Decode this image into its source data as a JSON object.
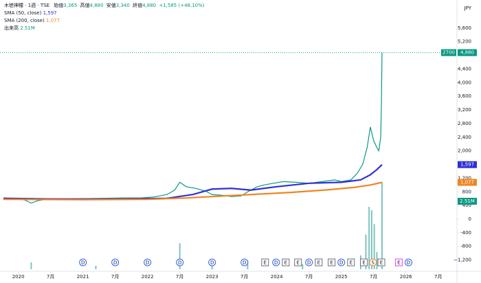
{
  "chart_data": {
    "type": "line",
    "symbol": "木徳神糧",
    "interval": "1週",
    "exchange": "TSE",
    "ohlc": [
      {
        "label": "始値",
        "value": "3,365"
      },
      {
        "label": "高値",
        "value": "4,880"
      },
      {
        "label": "安値",
        "value": "3,340"
      },
      {
        "label": "終値",
        "value": "4,880"
      }
    ],
    "change": "+1,585 (+48.10%)",
    "currency": "JPY",
    "countdown": "2700",
    "xlim": [
      2019.77,
      2026.79
    ],
    "xticks": [
      2020,
      {
        "value": 2020.5,
        "label": "7月"
      },
      2021,
      {
        "value": 2021.5,
        "label": "7月"
      },
      2022,
      {
        "value": 2022.5,
        "label": "7月"
      },
      2023,
      {
        "value": 2023.5,
        "label": "7月"
      },
      2024,
      {
        "value": 2024.5,
        "label": "7月"
      },
      2025,
      {
        "value": 2025.5,
        "label": "7月"
      },
      2026,
      {
        "value": 2026.5,
        "label": "7月"
      }
    ],
    "ylim": [
      -1470,
      6060
    ],
    "yticks": [
      {
        "value": 5600,
        "label": "5,600"
      },
      {
        "value": 5200,
        "label": "5,200"
      },
      {
        "value": 4400,
        "label": "4,400"
      },
      {
        "value": 4000,
        "label": "4,000"
      },
      {
        "value": 3600,
        "label": "3,600"
      },
      {
        "value": 3200,
        "label": "3,200"
      },
      {
        "value": 2800,
        "label": "2,800"
      },
      {
        "value": 2400,
        "label": "2,400"
      },
      {
        "value": 2000,
        "label": "2,000"
      },
      {
        "value": 1200,
        "label": "1,200"
      },
      800,
      400,
      0,
      -400,
      -800,
      {
        "value": -1200,
        "label": "−1,200"
      }
    ],
    "y2lim": [
      0,
      7.4
    ],
    "series": [
      {
        "name": "木徳神糧",
        "color": "#089981",
        "last_label": "4,880",
        "x": [
          2019.77,
          2019.9,
          2020.0,
          2020.1,
          2020.2,
          2020.3,
          2020.5,
          2020.7,
          2021.0,
          2021.3,
          2021.6,
          2021.9,
          2022.1,
          2022.3,
          2022.42,
          2022.5,
          2022.6,
          2022.75,
          2022.9,
          2023.0,
          2023.15,
          2023.3,
          2023.45,
          2023.55,
          2023.7,
          2023.8,
          2023.95,
          2024.1,
          2024.3,
          2024.5,
          2024.7,
          2024.9,
          2025.0,
          2025.15,
          2025.25,
          2025.33,
          2025.4,
          2025.45,
          2025.5,
          2025.55,
          2025.58,
          2025.61,
          2025.62,
          2025.63
        ],
        "values": [
          620,
          600,
          590,
          560,
          470,
          540,
          600,
          590,
          600,
          610,
          620,
          620,
          650,
          720,
          850,
          1080,
          950,
          900,
          820,
          720,
          700,
          660,
          680,
          800,
          950,
          1000,
          1050,
          1100,
          1080,
          1050,
          1100,
          1150,
          1100,
          1150,
          1350,
          1600,
          2100,
          2700,
          2300,
          2100,
          2000,
          2400,
          3300,
          4880
        ]
      },
      {
        "name": "SMA (50, close)",
        "color": "#2f30d6",
        "last_label": "1,597",
        "x": [
          2019.77,
          2020.5,
          2021.5,
          2022.3,
          2022.7,
          2023.0,
          2023.3,
          2023.6,
          2024.0,
          2024.5,
          2025.0,
          2025.3,
          2025.45,
          2025.55,
          2025.63
        ],
        "values": [
          610,
          590,
          590,
          610,
          720,
          880,
          900,
          850,
          950,
          1050,
          1080,
          1150,
          1300,
          1450,
          1597
        ]
      },
      {
        "name": "SMA (200, close)",
        "color": "#f0851f",
        "last_label": "1,077",
        "x": [
          2019.77,
          2021.0,
          2022.0,
          2022.6,
          2023.2,
          2023.6,
          2024.2,
          2024.8,
          2025.2,
          2025.45,
          2025.63
        ],
        "values": [
          580,
          570,
          580,
          620,
          680,
          720,
          780,
          860,
          930,
          1000,
          1077
        ]
      },
      {
        "name": "出来高",
        "color": "#7fc4c0",
        "axis": "y2",
        "last_label": "2.51M",
        "x": [
          2020.2,
          2021.2,
          2022.5,
          2023.0,
          2023.55,
          2024.4,
          2025.3,
          2025.38,
          2025.43,
          2025.47,
          2025.51,
          2025.55,
          2025.63
        ],
        "values": [
          0.2,
          0.1,
          0.75,
          0.2,
          0.25,
          0.15,
          0.4,
          1.0,
          1.8,
          1.7,
          1.3,
          0.5,
          2.51
        ]
      }
    ],
    "events": [
      {
        "x": 2021.0,
        "label": "D"
      },
      {
        "x": 2021.5,
        "label": "D"
      },
      {
        "x": 2022.0,
        "label": "D"
      },
      {
        "x": 2022.5,
        "label": "D"
      },
      {
        "x": 2023.0,
        "label": "D"
      },
      {
        "x": 2023.5,
        "label": "D"
      },
      {
        "x": 2023.82,
        "label": "E"
      },
      {
        "x": 2023.99,
        "label": "D"
      },
      {
        "x": 2024.14,
        "label": "E"
      },
      {
        "x": 2024.33,
        "label": "E"
      },
      {
        "x": 2024.5,
        "label": "D"
      },
      {
        "x": 2024.65,
        "label": "E"
      },
      {
        "x": 2024.85,
        "label": "E"
      },
      {
        "x": 2025.0,
        "label": "D"
      },
      {
        "x": 2025.15,
        "label": "E"
      },
      {
        "x": 2025.35,
        "label": "E"
      },
      {
        "x": 2025.49,
        "label": "S"
      },
      {
        "x": 2025.62,
        "label": "E"
      },
      {
        "x": 2025.89,
        "label": "E"
      },
      {
        "x": 2026.04,
        "label": "D"
      }
    ]
  }
}
